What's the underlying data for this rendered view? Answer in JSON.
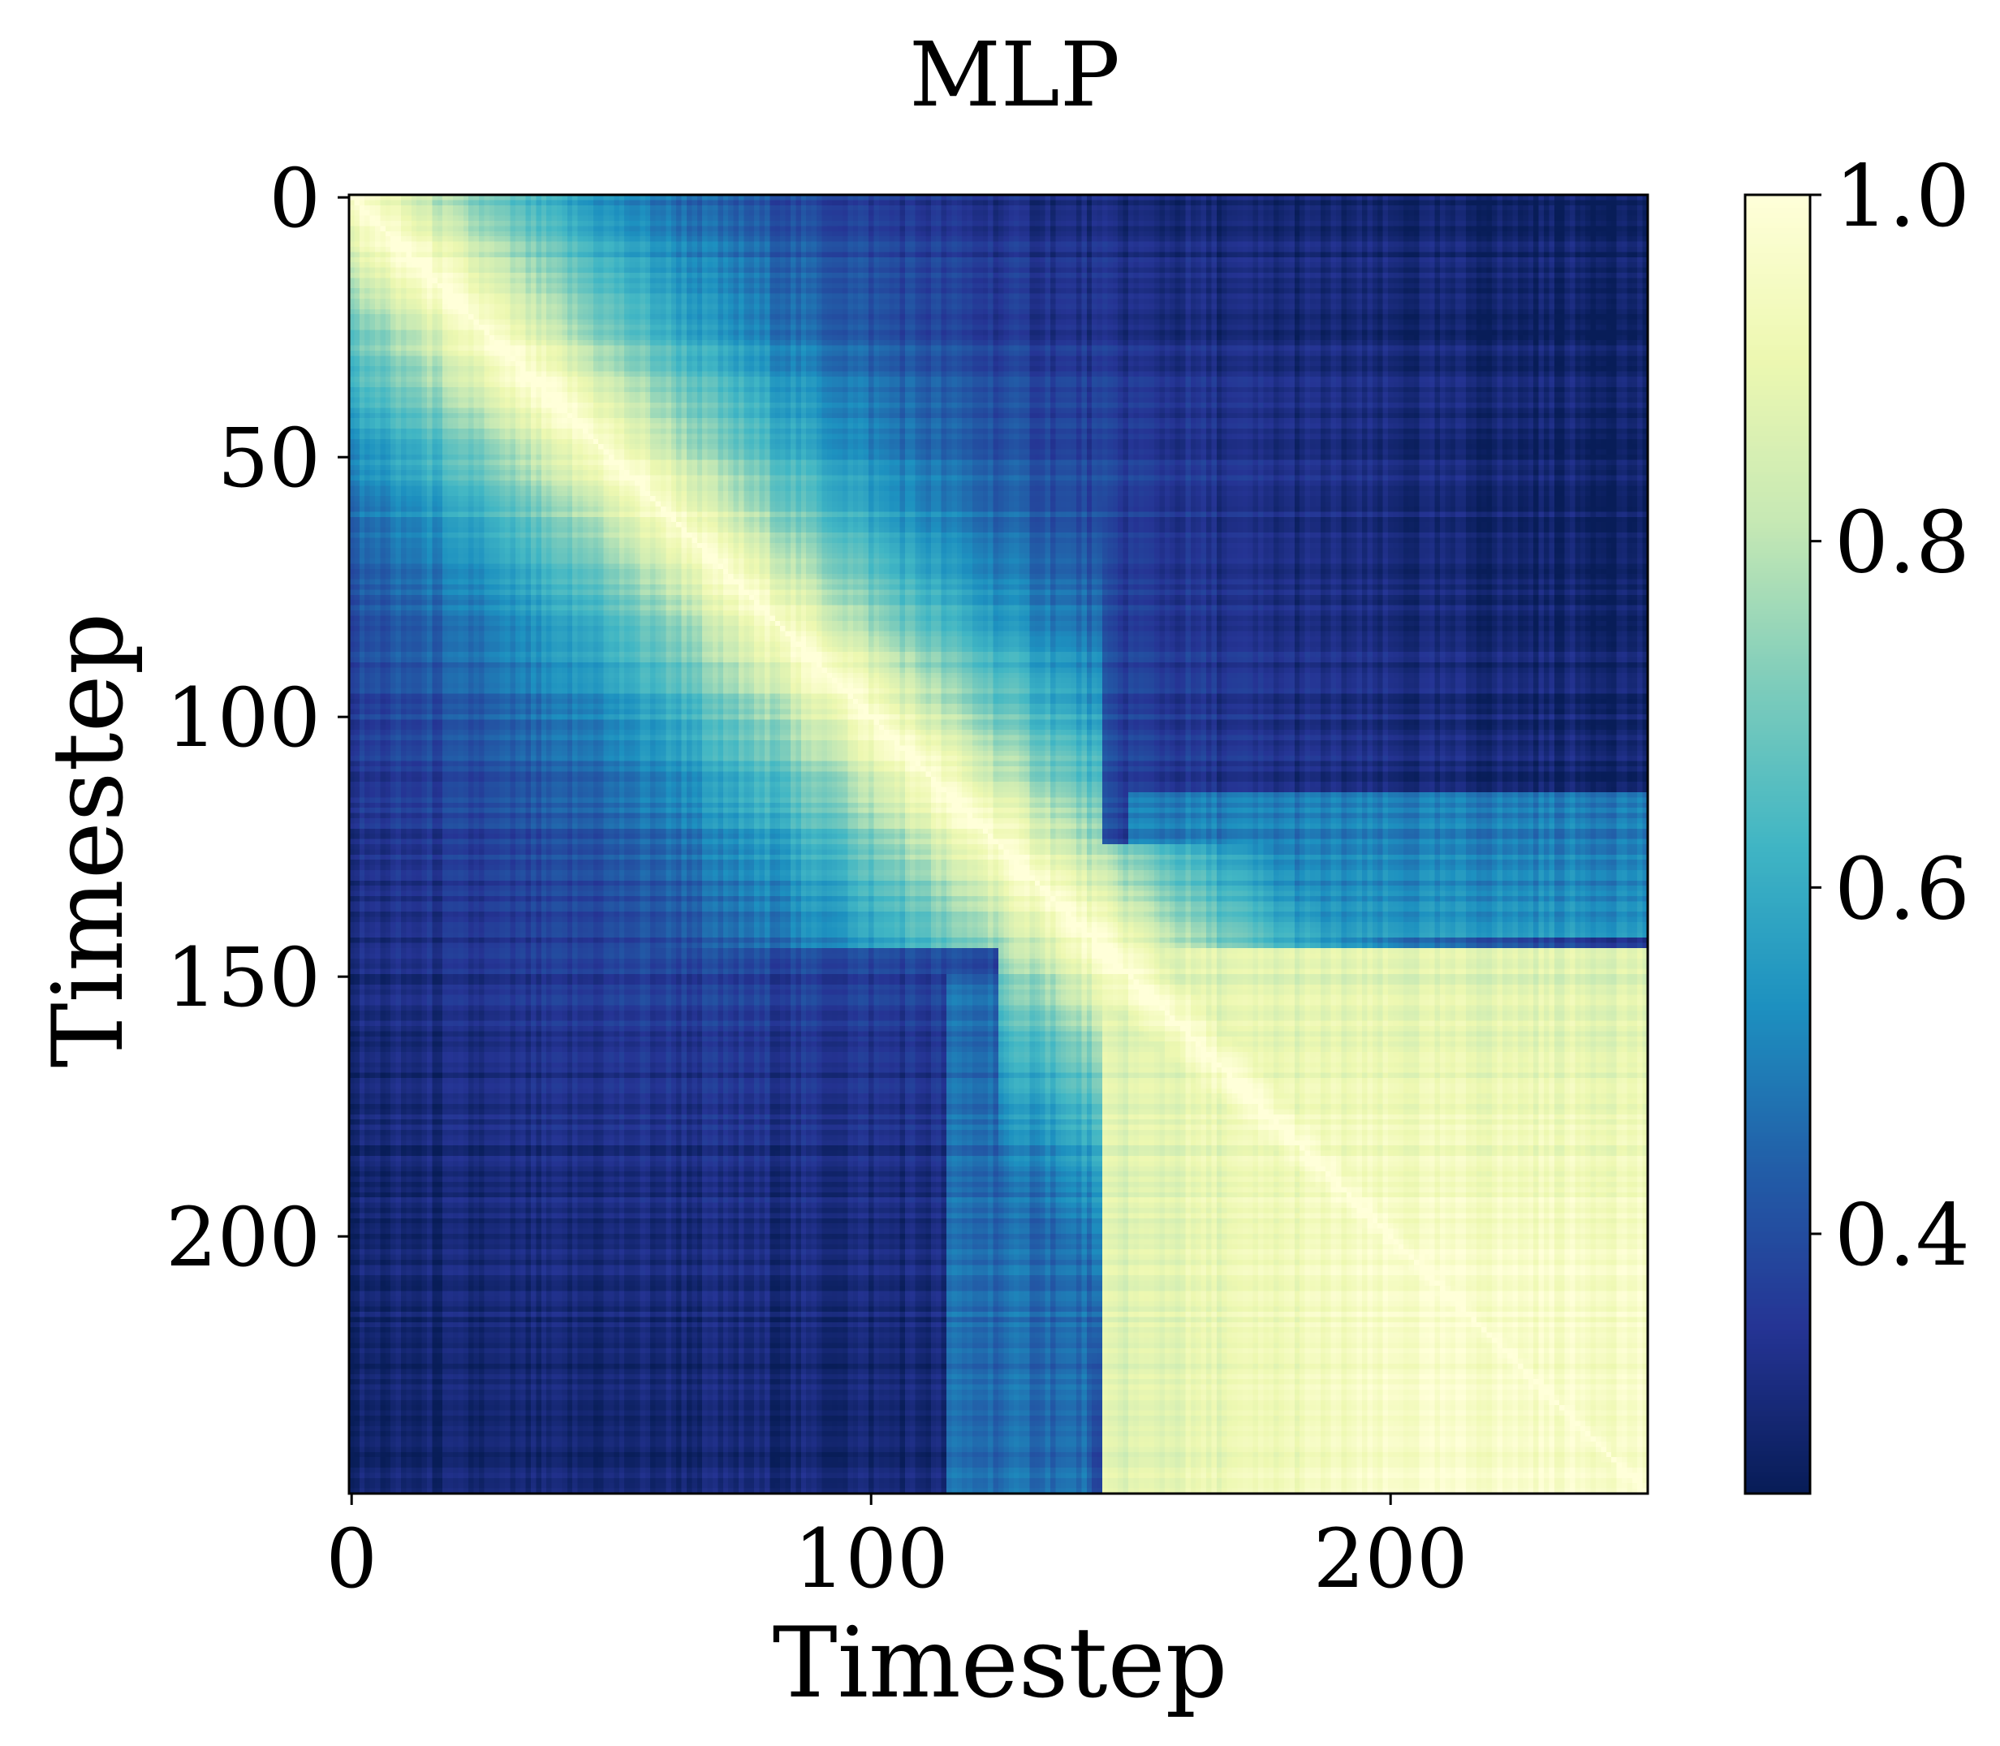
{
  "chart_data": {
    "type": "heatmap",
    "title": "MLP",
    "xlabel": "Timestep",
    "ylabel": "Timestep",
    "n_rows": 250,
    "n_cols": 250,
    "xlim": [
      0,
      250
    ],
    "ylim": [
      0,
      250
    ],
    "x_ticks": [
      0,
      100,
      200
    ],
    "y_ticks": [
      0,
      50,
      100,
      150,
      200
    ],
    "colorbar": {
      "colormap": "YlGnBu_r",
      "vmin": 0.25,
      "vmax": 1.0,
      "ticks": [
        0.4,
        0.6,
        0.8,
        1.0
      ],
      "tick_labels": [
        "0.4",
        "0.6",
        "0.8",
        "1.0"
      ]
    },
    "structure_description_values": {
      "diagonal_value": 1.0,
      "early_block_range": [
        0,
        140
      ],
      "late_block_range": [
        145,
        250
      ],
      "late_block_mean": 0.93,
      "off_block_min": 0.25
    }
  }
}
